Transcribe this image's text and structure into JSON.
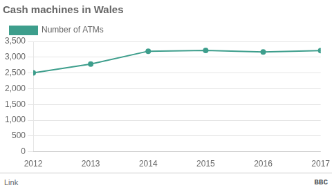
{
  "chart_data": {
    "type": "line",
    "title": "Cash machines in Wales",
    "x": [
      2012,
      2013,
      2014,
      2015,
      2016,
      2017
    ],
    "series": [
      {
        "name": "Number of ATMs",
        "color": "#3d9e8c",
        "marker": "circle",
        "values": [
          2500,
          2780,
          3190,
          3215,
          3165,
          3210
        ]
      }
    ],
    "xlim": [
      2012,
      2017
    ],
    "xticks": [
      2012,
      2013,
      2014,
      2015,
      2016,
      2017
    ],
    "ylim": [
      0,
      3500
    ],
    "yticks": [
      0,
      500,
      {
        "value": 1000,
        "label": "1,000"
      },
      {
        "value": 1500,
        "label": "1,500"
      },
      {
        "value": 2000,
        "label": "2,000"
      },
      {
        "value": 2500,
        "label": "2,500"
      },
      {
        "value": 3000,
        "label": "3,000"
      },
      {
        "value": 3500,
        "label": "3,500"
      }
    ],
    "grid": "y",
    "legend": "upper left",
    "annotations": [
      "Link",
      "BBC"
    ]
  }
}
